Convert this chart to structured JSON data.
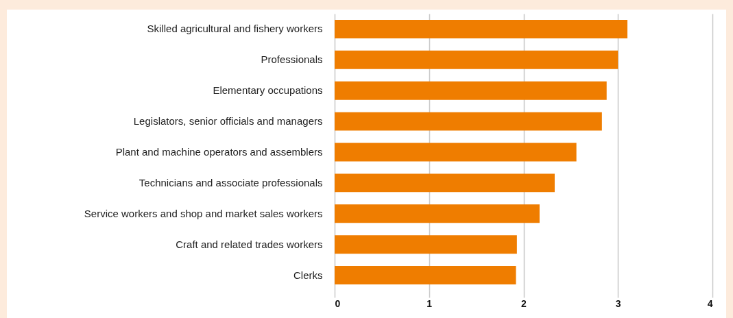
{
  "chart_data": {
    "type": "bar",
    "orientation": "horizontal",
    "categories": [
      "Skilled agricultural and fishery workers",
      "Professionals",
      "Elementary occupations",
      "Legislators, senior officials and managers",
      "Plant and machine operators and assemblers",
      "Technicians and associate professionals",
      "Service workers and shop and market sales workers",
      "Craft and related trades workers",
      "Clerks"
    ],
    "values": [
      3.1,
      3.0,
      2.88,
      2.83,
      2.56,
      2.33,
      2.17,
      1.93,
      1.92
    ],
    "color": "#ef7d00",
    "xlim": [
      0,
      4
    ],
    "xticks": [
      0,
      1,
      2,
      3,
      4
    ],
    "grid": "x"
  }
}
